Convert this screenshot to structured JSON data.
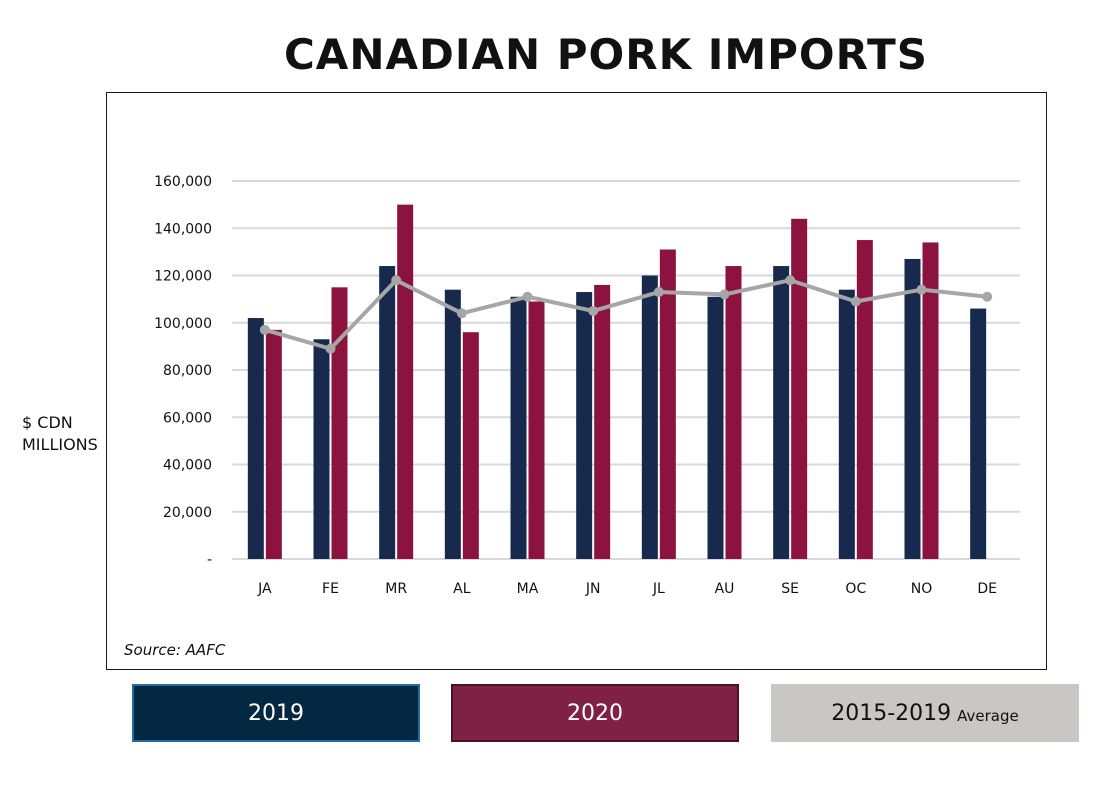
{
  "title": "CANADIAN PORK IMPORTS",
  "y_label_line1": "$ CDN",
  "y_label_line2": "MILLIONS",
  "source": "Source: AAFC",
  "legend": {
    "s2019": "2019",
    "s2020": "2020",
    "avg_main": "2015-2019",
    "avg_sub": "Average"
  },
  "colors": {
    "s2019": "#172a4e",
    "s2020": "#8c1240",
    "avg": "#a6a6a6",
    "grid": "#d9d9d9"
  },
  "chart_data": {
    "type": "bar",
    "title": "CANADIAN PORK IMPORTS",
    "ylabel": "$ CDN MILLIONS",
    "ylim": [
      0,
      160000
    ],
    "yticks": [
      0,
      20000,
      40000,
      60000,
      80000,
      100000,
      120000,
      140000,
      160000
    ],
    "ytick_labels": [
      "-",
      "20,000",
      "40,000",
      "60,000",
      "80,000",
      "100,000",
      "120,000",
      "140,000",
      "160,000"
    ],
    "categories": [
      "JA",
      "FE",
      "MR",
      "AL",
      "MA",
      "JN",
      "JL",
      "AU",
      "SE",
      "OC",
      "NO",
      "DE"
    ],
    "series": [
      {
        "name": "2019",
        "type": "bar",
        "values": [
          102000,
          93000,
          124000,
          114000,
          111000,
          113000,
          120000,
          111000,
          124000,
          114000,
          127000,
          106000
        ]
      },
      {
        "name": "2020",
        "type": "bar",
        "values": [
          97000,
          115000,
          150000,
          96000,
          109000,
          116000,
          131000,
          124000,
          144000,
          135000,
          134000,
          null
        ]
      },
      {
        "name": "2015-2019 Average",
        "type": "line",
        "values": [
          97000,
          89000,
          118000,
          104000,
          111000,
          105000,
          113000,
          112000,
          118000,
          109000,
          114000,
          111000
        ]
      }
    ],
    "grid": true,
    "legend_position": "bottom"
  }
}
